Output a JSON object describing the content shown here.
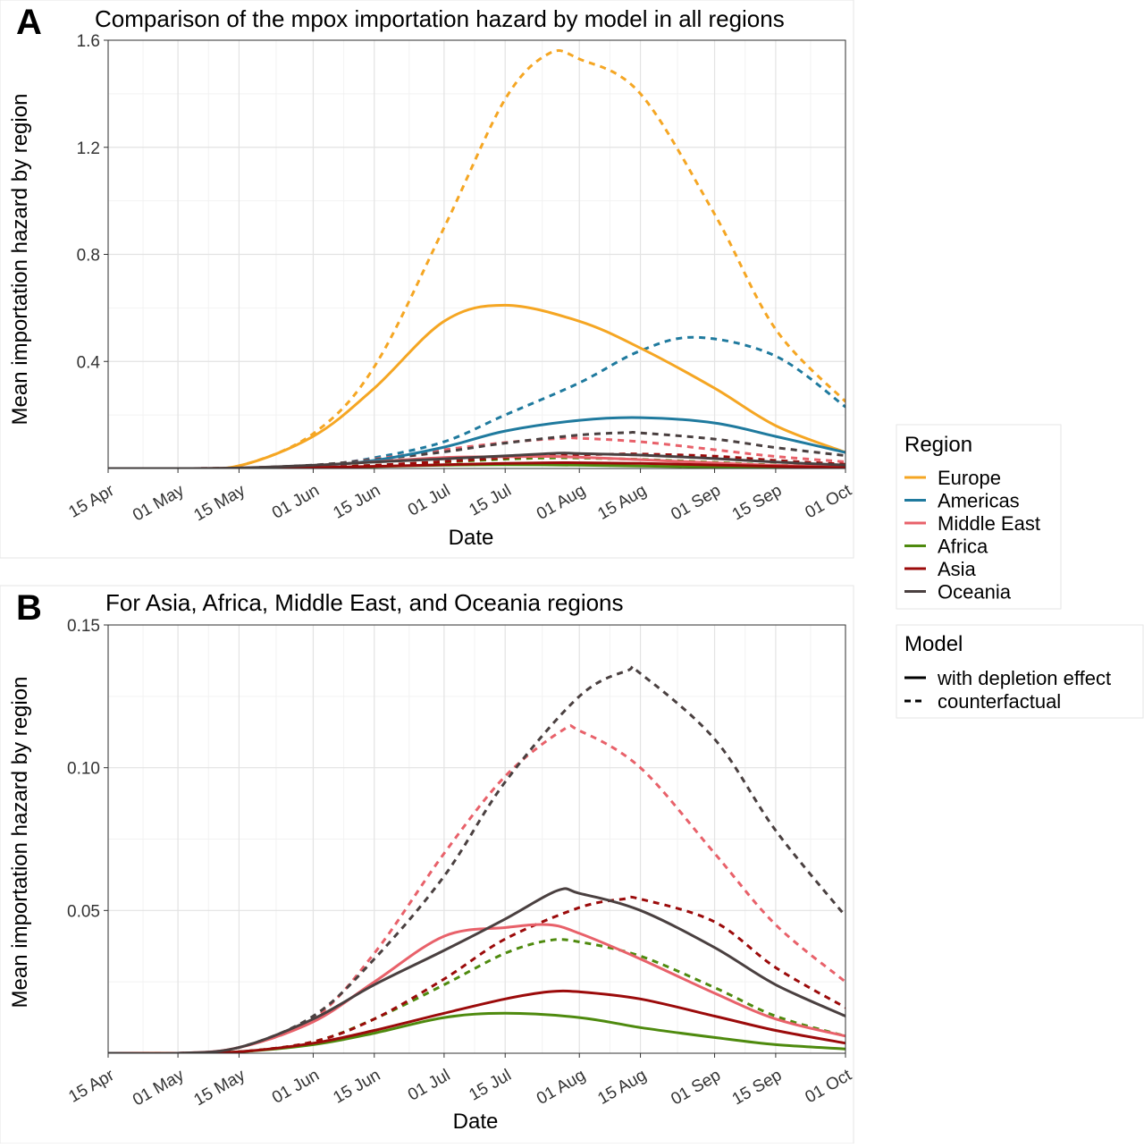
{
  "panels": [
    {
      "letter": "A",
      "title": "Comparison of the mpox importation hazard by model in all regions",
      "xlabel": "Date",
      "ylabel": "Mean importation hazard by region"
    },
    {
      "letter": "B",
      "title": "For Asia, Africa, Middle East, and Oceania regions",
      "xlabel": "Date",
      "ylabel": "Mean importation hazard by region"
    }
  ],
  "legend": {
    "region_title": "Region",
    "regions": [
      {
        "name": "Europe",
        "color": "#F5A623"
      },
      {
        "name": "Americas",
        "color": "#1F7A9E"
      },
      {
        "name": "Middle East",
        "color": "#E8616A"
      },
      {
        "name": "Africa",
        "color": "#4E8A0E"
      },
      {
        "name": "Asia",
        "color": "#9B0A0A"
      },
      {
        "name": "Oceania",
        "color": "#4A4040"
      }
    ],
    "model_title": "Model",
    "models": [
      {
        "name": "with depletion effect",
        "style": "solid"
      },
      {
        "name": "counterfactual",
        "style": "dashed"
      }
    ]
  },
  "chart_data": [
    {
      "type": "line",
      "panel": "A",
      "title": "Comparison of the mpox importation hazard by model in all regions",
      "xlabel": "Date",
      "ylabel": "Mean importation hazard by region",
      "x_ticks": [
        "15 Apr",
        "01 May",
        "15 May",
        "01 Jun",
        "15 Jun",
        "01 Jul",
        "15 Jul",
        "01 Aug",
        "15 Aug",
        "01 Sep",
        "15 Sep",
        "01 Oct"
      ],
      "x_range": [
        "2022-04-15",
        "2022-10-01"
      ],
      "y_ticks": [
        0.4,
        0.8,
        1.2,
        1.6
      ],
      "ylim": [
        0,
        1.6
      ],
      "grid": true,
      "series": [
        {
          "region": "Europe",
          "model": "with depletion effect",
          "points": [
            [
              "2022-04-15",
              0
            ],
            [
              "2022-05-01",
              0
            ],
            [
              "2022-05-15",
              0.01
            ],
            [
              "2022-06-01",
              0.12
            ],
            [
              "2022-06-15",
              0.3
            ],
            [
              "2022-07-01",
              0.55
            ],
            [
              "2022-07-15",
              0.61
            ],
            [
              "2022-08-01",
              0.55
            ],
            [
              "2022-08-15",
              0.45
            ],
            [
              "2022-09-01",
              0.3
            ],
            [
              "2022-09-15",
              0.16
            ],
            [
              "2022-10-01",
              0.06
            ]
          ]
        },
        {
          "region": "Europe",
          "model": "counterfactual",
          "points": [
            [
              "2022-04-15",
              0
            ],
            [
              "2022-05-01",
              0
            ],
            [
              "2022-05-15",
              0.01
            ],
            [
              "2022-06-01",
              0.13
            ],
            [
              "2022-06-15",
              0.38
            ],
            [
              "2022-07-01",
              0.9
            ],
            [
              "2022-07-15",
              1.38
            ],
            [
              "2022-07-25",
              1.55
            ],
            [
              "2022-08-01",
              1.53
            ],
            [
              "2022-08-15",
              1.4
            ],
            [
              "2022-09-01",
              0.95
            ],
            [
              "2022-09-15",
              0.52
            ],
            [
              "2022-10-01",
              0.25
            ]
          ]
        },
        {
          "region": "Americas",
          "model": "with depletion effect",
          "points": [
            [
              "2022-04-15",
              0
            ],
            [
              "2022-05-15",
              0
            ],
            [
              "2022-06-01",
              0.01
            ],
            [
              "2022-06-15",
              0.03
            ],
            [
              "2022-07-01",
              0.08
            ],
            [
              "2022-07-15",
              0.14
            ],
            [
              "2022-08-01",
              0.18
            ],
            [
              "2022-08-15",
              0.19
            ],
            [
              "2022-09-01",
              0.17
            ],
            [
              "2022-09-15",
              0.12
            ],
            [
              "2022-10-01",
              0.06
            ]
          ]
        },
        {
          "region": "Americas",
          "model": "counterfactual",
          "points": [
            [
              "2022-04-15",
              0
            ],
            [
              "2022-05-15",
              0
            ],
            [
              "2022-06-01",
              0.01
            ],
            [
              "2022-06-15",
              0.04
            ],
            [
              "2022-07-01",
              0.1
            ],
            [
              "2022-07-15",
              0.2
            ],
            [
              "2022-08-01",
              0.32
            ],
            [
              "2022-08-15",
              0.44
            ],
            [
              "2022-08-28",
              0.49
            ],
            [
              "2022-09-15",
              0.42
            ],
            [
              "2022-10-01",
              0.23
            ]
          ]
        },
        {
          "region": "Middle East",
          "model": "with depletion effect",
          "points": [
            [
              "2022-04-15",
              0
            ],
            [
              "2022-05-01",
              0
            ],
            [
              "2022-05-15",
              0.002
            ],
            [
              "2022-06-01",
              0.011
            ],
            [
              "2022-06-15",
              0.025
            ],
            [
              "2022-07-01",
              0.041
            ],
            [
              "2022-07-15",
              0.044
            ],
            [
              "2022-07-25",
              0.045
            ],
            [
              "2022-08-01",
              0.042
            ],
            [
              "2022-08-15",
              0.033
            ],
            [
              "2022-09-01",
              0.021
            ],
            [
              "2022-09-15",
              0.012
            ],
            [
              "2022-10-01",
              0.006
            ]
          ]
        },
        {
          "region": "Middle East",
          "model": "counterfactual",
          "points": [
            [
              "2022-04-15",
              0
            ],
            [
              "2022-05-01",
              0
            ],
            [
              "2022-05-15",
              0.002
            ],
            [
              "2022-06-01",
              0.012
            ],
            [
              "2022-06-15",
              0.035
            ],
            [
              "2022-07-01",
              0.07
            ],
            [
              "2022-07-15",
              0.097
            ],
            [
              "2022-07-28",
              0.113
            ],
            [
              "2022-08-01",
              0.113
            ],
            [
              "2022-08-15",
              0.1
            ],
            [
              "2022-09-01",
              0.07
            ],
            [
              "2022-09-15",
              0.045
            ],
            [
              "2022-10-01",
              0.025
            ]
          ]
        },
        {
          "region": "Africa",
          "model": "with depletion effect",
          "points": [
            [
              "2022-04-15",
              0
            ],
            [
              "2022-05-01",
              0
            ],
            [
              "2022-05-15",
              0.0005
            ],
            [
              "2022-06-01",
              0.003
            ],
            [
              "2022-06-15",
              0.007
            ],
            [
              "2022-07-01",
              0.0125
            ],
            [
              "2022-07-15",
              0.014
            ],
            [
              "2022-08-01",
              0.0125
            ],
            [
              "2022-08-15",
              0.009
            ],
            [
              "2022-09-01",
              0.0055
            ],
            [
              "2022-09-15",
              0.003
            ],
            [
              "2022-10-01",
              0.0015
            ]
          ]
        },
        {
          "region": "Africa",
          "model": "counterfactual",
          "points": [
            [
              "2022-04-15",
              0
            ],
            [
              "2022-05-01",
              0
            ],
            [
              "2022-05-15",
              0.0005
            ],
            [
              "2022-06-01",
              0.004
            ],
            [
              "2022-06-15",
              0.012
            ],
            [
              "2022-07-01",
              0.024
            ],
            [
              "2022-07-15",
              0.035
            ],
            [
              "2022-07-25",
              0.0395
            ],
            [
              "2022-08-01",
              0.039
            ],
            [
              "2022-08-15",
              0.034
            ],
            [
              "2022-09-01",
              0.023
            ],
            [
              "2022-09-15",
              0.013
            ],
            [
              "2022-10-01",
              0.006
            ]
          ]
        },
        {
          "region": "Asia",
          "model": "with depletion effect",
          "points": [
            [
              "2022-04-15",
              0
            ],
            [
              "2022-05-01",
              0
            ],
            [
              "2022-05-15",
              0.0005
            ],
            [
              "2022-06-01",
              0.0035
            ],
            [
              "2022-06-15",
              0.008
            ],
            [
              "2022-07-01",
              0.014
            ],
            [
              "2022-07-15",
              0.019
            ],
            [
              "2022-07-25",
              0.0215
            ],
            [
              "2022-08-01",
              0.0215
            ],
            [
              "2022-08-15",
              0.019
            ],
            [
              "2022-09-01",
              0.013
            ],
            [
              "2022-09-15",
              0.008
            ],
            [
              "2022-10-01",
              0.0035
            ]
          ]
        },
        {
          "region": "Asia",
          "model": "counterfactual",
          "points": [
            [
              "2022-04-15",
              0
            ],
            [
              "2022-05-01",
              0
            ],
            [
              "2022-05-15",
              0.0005
            ],
            [
              "2022-06-01",
              0.004
            ],
            [
              "2022-06-15",
              0.012
            ],
            [
              "2022-07-01",
              0.026
            ],
            [
              "2022-07-15",
              0.04
            ],
            [
              "2022-08-01",
              0.051
            ],
            [
              "2022-08-11",
              0.054
            ],
            [
              "2022-08-15",
              0.054
            ],
            [
              "2022-09-01",
              0.046
            ],
            [
              "2022-09-15",
              0.03
            ],
            [
              "2022-10-01",
              0.016
            ]
          ]
        },
        {
          "region": "Oceania",
          "model": "with depletion effect",
          "points": [
            [
              "2022-04-15",
              0
            ],
            [
              "2022-05-01",
              0
            ],
            [
              "2022-05-15",
              0.002
            ],
            [
              "2022-06-01",
              0.012
            ],
            [
              "2022-06-15",
              0.024
            ],
            [
              "2022-07-01",
              0.036
            ],
            [
              "2022-07-15",
              0.047
            ],
            [
              "2022-07-27",
              0.057
            ],
            [
              "2022-08-01",
              0.056
            ],
            [
              "2022-08-15",
              0.05
            ],
            [
              "2022-09-01",
              0.037
            ],
            [
              "2022-09-15",
              0.024
            ],
            [
              "2022-10-01",
              0.013
            ]
          ]
        },
        {
          "region": "Oceania",
          "model": "counterfactual",
          "points": [
            [
              "2022-04-15",
              0
            ],
            [
              "2022-05-01",
              0
            ],
            [
              "2022-05-15",
              0.002
            ],
            [
              "2022-06-01",
              0.013
            ],
            [
              "2022-06-15",
              0.033
            ],
            [
              "2022-07-01",
              0.062
            ],
            [
              "2022-07-15",
              0.095
            ],
            [
              "2022-08-01",
              0.125
            ],
            [
              "2022-08-12",
              0.134
            ],
            [
              "2022-08-15",
              0.133
            ],
            [
              "2022-09-01",
              0.11
            ],
            [
              "2022-09-15",
              0.078
            ],
            [
              "2022-10-01",
              0.048
            ]
          ]
        }
      ]
    },
    {
      "type": "line",
      "panel": "B",
      "title": "For Asia, Africa, Middle East, and Oceania regions",
      "xlabel": "Date",
      "ylabel": "Mean importation hazard by region",
      "x_ticks": [
        "15 Apr",
        "01 May",
        "15 May",
        "01 Jun",
        "15 Jun",
        "01 Jul",
        "15 Jul",
        "01 Aug",
        "15 Aug",
        "01 Sep",
        "15 Sep",
        "01 Oct"
      ],
      "x_range": [
        "2022-04-15",
        "2022-10-01"
      ],
      "y_ticks": [
        0.05,
        0.1,
        0.15
      ],
      "ylim": [
        0,
        0.15
      ],
      "grid": true,
      "series_from_panel": "A",
      "regions_shown": [
        "Middle East",
        "Africa",
        "Asia",
        "Oceania"
      ]
    }
  ]
}
